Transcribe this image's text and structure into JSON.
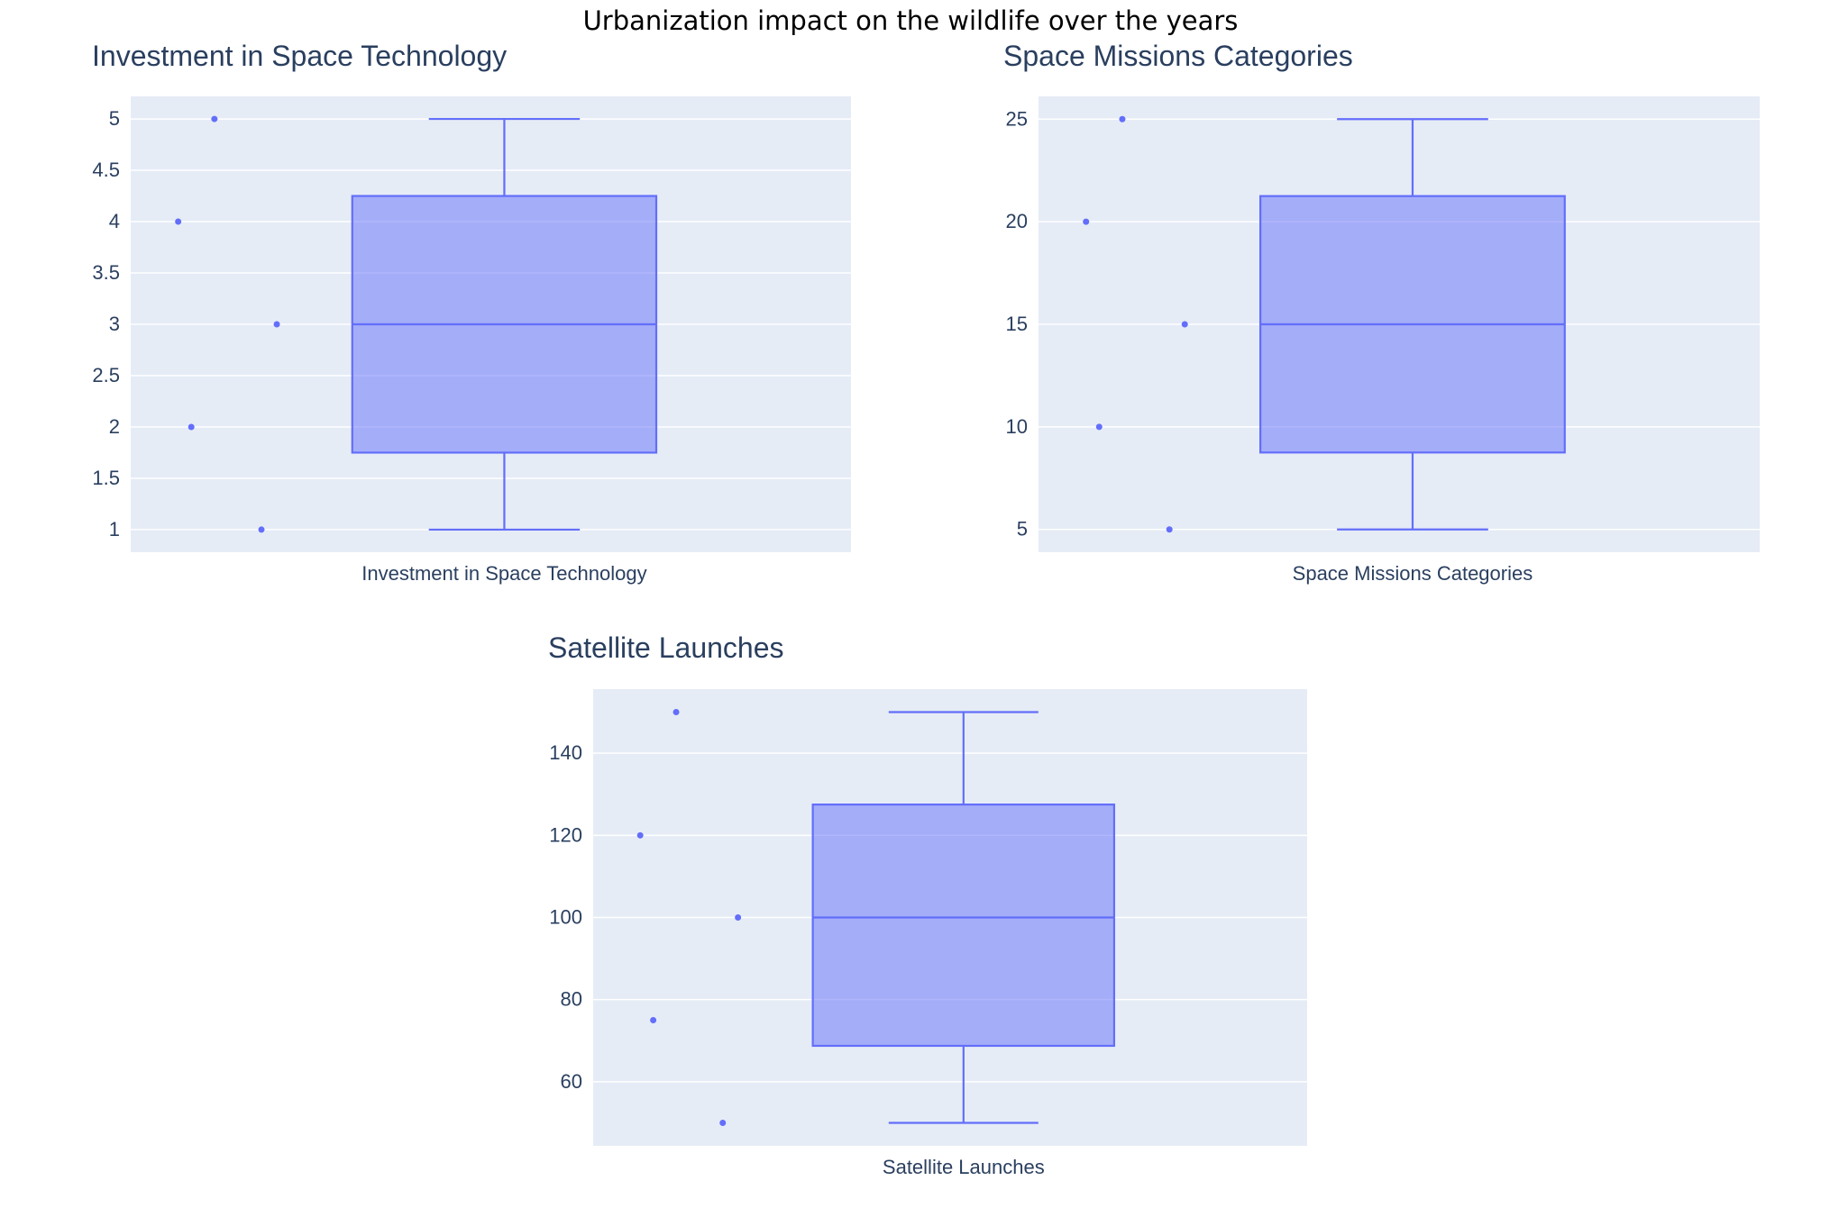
{
  "figure": {
    "title": "Urbanization impact on the wildlife over the years"
  },
  "colors": {
    "plot_background": "#e5ecf6",
    "grid": "#ffffff",
    "box_line": "#636efa",
    "box_fill": "#636efa",
    "text": "#2a3f5f"
  },
  "chart_data": [
    {
      "type": "box",
      "title": "Investment in Space Technology",
      "xlabel": "Investment in Space Technology",
      "ylabel": "",
      "category": "Investment in Space Technology",
      "points": [
        1,
        2,
        3,
        4,
        5
      ],
      "stats": {
        "min": 1,
        "q1": 1.75,
        "median": 3,
        "q3": 4.25,
        "max": 5
      },
      "ylim": [
        0.78,
        5.22
      ],
      "yticks": [
        1,
        1.5,
        2,
        2.5,
        3,
        3.5,
        4,
        4.5,
        5
      ],
      "ytick_labels": [
        "1",
        "1.5",
        "2",
        "2.5",
        "3",
        "3.5",
        "4",
        "4.5",
        "5"
      ],
      "grid": true
    },
    {
      "type": "box",
      "title": "Space Missions Categories",
      "xlabel": "Space Missions Categories",
      "ylabel": "",
      "category": "Space Missions Categories",
      "points": [
        5,
        10,
        15,
        20,
        25
      ],
      "stats": {
        "min": 5,
        "q1": 8.75,
        "median": 15,
        "q3": 21.25,
        "max": 25
      },
      "ylim": [
        3.89,
        26.11
      ],
      "yticks": [
        5,
        10,
        15,
        20,
        25
      ],
      "ytick_labels": [
        "5",
        "10",
        "15",
        "20",
        "25"
      ],
      "grid": true
    },
    {
      "type": "box",
      "title": "Satellite Launches",
      "xlabel": "Satellite Launches",
      "ylabel": "",
      "category": "Satellite Launches",
      "points": [
        50,
        75,
        100,
        120,
        150
      ],
      "stats": {
        "min": 50,
        "q1": 68.75,
        "median": 100,
        "q3": 127.5,
        "max": 150
      },
      "ylim": [
        44.4,
        155.6
      ],
      "yticks": [
        60,
        80,
        100,
        120,
        140
      ],
      "ytick_labels": [
        "60",
        "80",
        "100",
        "120",
        "140"
      ],
      "grid": true
    }
  ]
}
